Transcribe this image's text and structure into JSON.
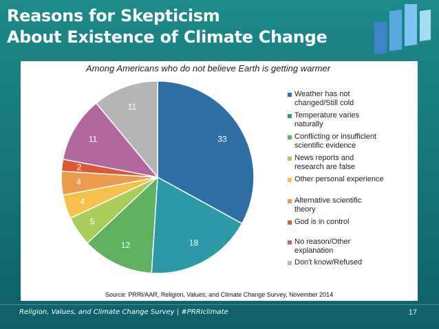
{
  "slide": {
    "title_line1": "Reasons for Skepticism",
    "title_line2": "About Existence of Climate Change",
    "footer_left": "Religion, Values, and Climate Change Survey | #PRRIclimate",
    "page_number": "17"
  },
  "chart_data": {
    "type": "pie",
    "subtitle": "Among Americans who do not believe Earth is getting warmer",
    "source": "Source: PRRI/AAR, Religion, Values, and Climate Change Survey, November 2014",
    "legend_position": "right",
    "slices": [
      {
        "label": "Weather has not changed/Still cold",
        "value": 33,
        "color": "#2f6fa5"
      },
      {
        "label": "Temperature varies naturally",
        "value": 18,
        "color": "#2b9aa6"
      },
      {
        "label": "Conflicting or insufficient scientific evidence",
        "value": 12,
        "color": "#5fb05f"
      },
      {
        "label": "News reports and research are false",
        "value": 5,
        "color": "#a9cc5a"
      },
      {
        "label": "Other personal experience",
        "value": 4,
        "color": "#f6c14a"
      },
      {
        "label": "Alternative scientific theory",
        "value": 4,
        "color": "#ec9a4e"
      },
      {
        "label": "God is in control",
        "value": 2,
        "color": "#db5a35"
      },
      {
        "label": "No reason/Other explanation",
        "value": 11,
        "color": "#b0689f"
      },
      {
        "label": "Don't know/Refused",
        "value": 11,
        "color": "#b5b5b5"
      }
    ]
  }
}
